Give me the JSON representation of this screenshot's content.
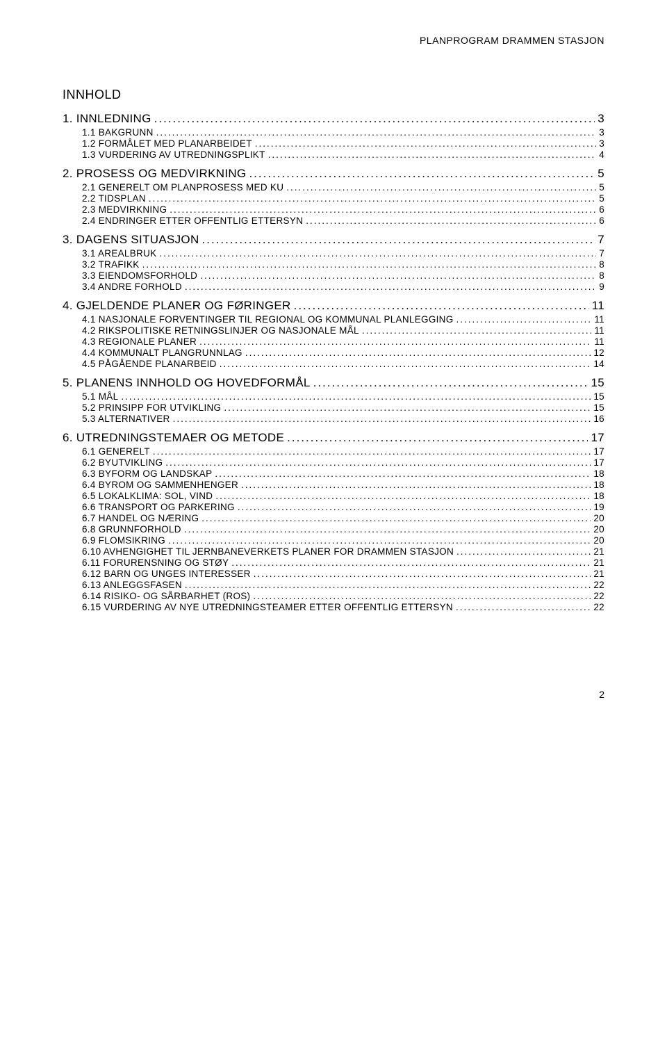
{
  "header": "PLANPROGRAM DRAMMEN STASJON",
  "title": "INNHOLD",
  "page_number": "2",
  "font": {
    "body_family": "Arial",
    "h1_size_pt": 18,
    "lvl1_size_pt": 17,
    "lvl2_size_pt": 13.5,
    "header_size_pt": 14
  },
  "colors": {
    "text": "#000000",
    "background": "#ffffff"
  },
  "toc": [
    {
      "level": 1,
      "label": "1.  INNLEDNING",
      "page": "3"
    },
    {
      "level": 2,
      "label": "1.1 BAKGRUNN",
      "page": "3"
    },
    {
      "level": 2,
      "label": "1.2 FORMÅLET MED PLANARBEIDET",
      "page": "3"
    },
    {
      "level": 2,
      "label": "1.3 VURDERING AV UTREDNINGSPLIKT",
      "page": "4"
    },
    {
      "level": 1,
      "label": "2.  PROSESS OG MEDVIRKNING",
      "page": "5"
    },
    {
      "level": 2,
      "label": "2.1 GENERELT OM PLANPROSESS MED KU",
      "page": "5"
    },
    {
      "level": 2,
      "label": "2.2 TIDSPLAN",
      "page": "5"
    },
    {
      "level": 2,
      "label": "2.3 MEDVIRKNING",
      "page": "6"
    },
    {
      "level": 2,
      "label": "2.4 ENDRINGER ETTER OFFENTLIG ETTERSYN",
      "page": "6"
    },
    {
      "level": 1,
      "label": "3.  DAGENS SITUASJON",
      "page": "7"
    },
    {
      "level": 2,
      "label": "3.1 AREALBRUK",
      "page": "7"
    },
    {
      "level": 2,
      "label": "3.2 TRAFIKK",
      "page": "8"
    },
    {
      "level": 2,
      "label": "3.3 EIENDOMSFORHOLD",
      "page": "8"
    },
    {
      "level": 2,
      "label": "3.4 ANDRE FORHOLD",
      "page": "9"
    },
    {
      "level": 1,
      "label": "4.  GJELDENDE PLANER OG FØRINGER",
      "page": "11"
    },
    {
      "level": 2,
      "label": "4.1 NASJONALE FORVENTINGER TIL REGIONAL OG KOMMUNAL PLANLEGGING",
      "page": "11"
    },
    {
      "level": 2,
      "label": "4.2 RIKSPOLITISKE RETNINGSLINJER OG NASJONALE MÅL",
      "page": "11"
    },
    {
      "level": 2,
      "label": "4.3 REGIONALE PLANER",
      "page": "11"
    },
    {
      "level": 2,
      "label": "4.4 KOMMUNALT PLANGRUNNLAG",
      "page": "12"
    },
    {
      "level": 2,
      "label": "4.5 PÅGÅENDE PLANARBEID",
      "page": "14"
    },
    {
      "level": 1,
      "label": "5.  PLANENS INNHOLD OG HOVEDFORMÅL",
      "page": "15"
    },
    {
      "level": 2,
      "label": "5.1 MÅL",
      "page": "15"
    },
    {
      "level": 2,
      "label": "5.2 PRINSIPP FOR UTVIKLING",
      "page": "15"
    },
    {
      "level": 2,
      "label": "5.3 ALTERNATIVER",
      "page": "16"
    },
    {
      "level": 1,
      "label": "6.  UTREDNINGSTEMAER OG METODE",
      "page": "17"
    },
    {
      "level": 2,
      "label": "6.1 GENERELT",
      "page": "17"
    },
    {
      "level": 2,
      "label": "6.2 BYUTVIKLING",
      "page": "17"
    },
    {
      "level": 2,
      "label": "6.3 BYFORM OG LANDSKAP",
      "page": "18"
    },
    {
      "level": 2,
      "label": "6.4 BYROM OG SAMMENHENGER",
      "page": "18"
    },
    {
      "level": 2,
      "label": "6.5 LOKALKLIMA: SOL, VIND",
      "page": "18"
    },
    {
      "level": 2,
      "label": "6.6 TRANSPORT OG PARKERING",
      "page": "19"
    },
    {
      "level": 2,
      "label": "6.7 HANDEL OG NÆRING",
      "page": "20"
    },
    {
      "level": 2,
      "label": "6.8 GRUNNFORHOLD",
      "page": "20"
    },
    {
      "level": 2,
      "label": "6.9 FLOMSIKRING",
      "page": "20"
    },
    {
      "level": 2,
      "label": "6.10 AVHENGIGHET TIL JERNBANEVERKETS PLANER FOR DRAMMEN STASJON",
      "page": "21"
    },
    {
      "level": 2,
      "label": "6.11 FORURENSNING OG STØY",
      "page": "21"
    },
    {
      "level": 2,
      "label": "6.12 BARN OG UNGES INTERESSER",
      "page": "21"
    },
    {
      "level": 2,
      "label": "6.13 ANLEGGSFASEN",
      "page": "22"
    },
    {
      "level": 2,
      "label": "6.14 RISIKO- OG SÅRBARHET (ROS)",
      "page": "22"
    },
    {
      "level": 2,
      "label": "6.15 VURDERING AV NYE UTREDNINGSTEAMER ETTER OFFENTLIG ETTERSYN",
      "page": "22"
    }
  ]
}
